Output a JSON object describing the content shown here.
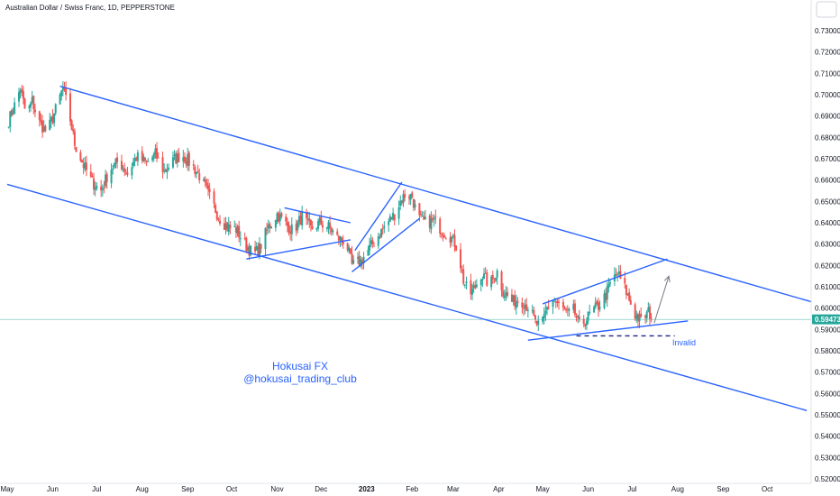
{
  "header": {
    "title": "Australian Dollar / Swiss Franc, 1D, PEPPERSTONE"
  },
  "colors": {
    "up": "#26a69a",
    "down": "#ef5350",
    "trendline": "#2962ff",
    "last_price_bg": "#26a69a",
    "axis_text": "#131722"
  },
  "icons": {
    "settings": "maximize-square-icon"
  },
  "watermark": {
    "line1": "Hokusai FX",
    "line2": "@hokusai_trading_club"
  },
  "annotations": {
    "invalid_label": "Invalid"
  },
  "last_price": {
    "label": "0.59473",
    "value": 0.59473
  },
  "chart_data": {
    "type": "candlestick",
    "title": "Australian Dollar / Swiss Franc, 1D, PEPPERSTONE",
    "ylim": [
      0.518,
      0.737
    ],
    "y_ticks": [
      0.73,
      0.72,
      0.71,
      0.7,
      0.69,
      0.68,
      0.67,
      0.66,
      0.65,
      0.64,
      0.63,
      0.62,
      0.61,
      0.6,
      0.59,
      0.58,
      0.57,
      0.56,
      0.55,
      0.54,
      0.53,
      0.52
    ],
    "y_tick_labels": [
      "0.73000",
      "0.72000",
      "0.71000",
      "0.70000",
      "0.69000",
      "0.68000",
      "0.67000",
      "0.66000",
      "0.65000",
      "0.64000",
      "0.63000",
      "0.62000",
      "0.61000",
      "0.60000",
      "0.59000",
      "0.58000",
      "0.57000",
      "0.56000",
      "0.55000",
      "0.54000",
      "0.53000",
      "0.52000"
    ],
    "x_range": [
      "2022-05-01",
      "2023-10-31"
    ],
    "x_ticks": [
      {
        "label": "May",
        "date": "2022-05-01",
        "bold": false
      },
      {
        "label": "Jun",
        "date": "2022-06-01",
        "bold": false
      },
      {
        "label": "Jul",
        "date": "2022-07-01",
        "bold": false
      },
      {
        "label": "Aug",
        "date": "2022-08-01",
        "bold": false
      },
      {
        "label": "Sep",
        "date": "2022-09-01",
        "bold": false
      },
      {
        "label": "Oct",
        "date": "2022-10-01",
        "bold": false
      },
      {
        "label": "Nov",
        "date": "2022-11-01",
        "bold": false
      },
      {
        "label": "Dec",
        "date": "2022-12-01",
        "bold": false
      },
      {
        "label": "2023",
        "date": "2023-01-01",
        "bold": true
      },
      {
        "label": "Feb",
        "date": "2023-02-01",
        "bold": false
      },
      {
        "label": "Mar",
        "date": "2023-03-01",
        "bold": false
      },
      {
        "label": "Apr",
        "date": "2023-04-01",
        "bold": false
      },
      {
        "label": "May",
        "date": "2023-05-01",
        "bold": false
      },
      {
        "label": "Jun",
        "date": "2023-06-01",
        "bold": false
      },
      {
        "label": "Jul",
        "date": "2023-07-01",
        "bold": false
      },
      {
        "label": "Aug",
        "date": "2023-08-01",
        "bold": false
      },
      {
        "label": "Sep",
        "date": "2023-09-01",
        "bold": false
      },
      {
        "label": "Oct",
        "date": "2023-10-01",
        "bold": false
      }
    ],
    "close_series": [
      [
        "2022-05-02",
        0.688
      ],
      [
        "2022-05-06",
        0.695
      ],
      [
        "2022-05-10",
        0.703
      ],
      [
        "2022-05-14",
        0.69
      ],
      [
        "2022-05-18",
        0.697
      ],
      [
        "2022-05-22",
        0.688
      ],
      [
        "2022-05-28",
        0.682
      ],
      [
        "2022-06-03",
        0.693
      ],
      [
        "2022-06-08",
        0.703
      ],
      [
        "2022-06-12",
        0.692
      ],
      [
        "2022-06-16",
        0.677
      ],
      [
        "2022-06-22",
        0.667
      ],
      [
        "2022-06-28",
        0.659
      ],
      [
        "2022-07-04",
        0.655
      ],
      [
        "2022-07-10",
        0.665
      ],
      [
        "2022-07-16",
        0.669
      ],
      [
        "2022-07-22",
        0.663
      ],
      [
        "2022-07-28",
        0.671
      ],
      [
        "2022-08-04",
        0.668
      ],
      [
        "2022-08-10",
        0.672
      ],
      [
        "2022-08-16",
        0.664
      ],
      [
        "2022-08-22",
        0.669
      ],
      [
        "2022-08-28",
        0.672
      ],
      [
        "2022-09-04",
        0.667
      ],
      [
        "2022-09-10",
        0.661
      ],
      [
        "2022-09-16",
        0.652
      ],
      [
        "2022-09-22",
        0.643
      ],
      [
        "2022-09-28",
        0.638
      ],
      [
        "2022-10-04",
        0.637
      ],
      [
        "2022-10-10",
        0.63
      ],
      [
        "2022-10-16",
        0.625
      ],
      [
        "2022-10-20",
        0.628
      ],
      [
        "2022-10-26",
        0.638
      ],
      [
        "2022-11-01",
        0.644
      ],
      [
        "2022-11-06",
        0.64
      ],
      [
        "2022-11-12",
        0.636
      ],
      [
        "2022-11-18",
        0.643
      ],
      [
        "2022-11-24",
        0.637
      ],
      [
        "2022-11-30",
        0.64
      ],
      [
        "2022-12-06",
        0.638
      ],
      [
        "2022-12-12",
        0.633
      ],
      [
        "2022-12-18",
        0.631
      ],
      [
        "2022-12-22",
        0.62
      ],
      [
        "2022-12-28",
        0.622
      ],
      [
        "2023-01-03",
        0.628
      ],
      [
        "2023-01-08",
        0.633
      ],
      [
        "2023-01-14",
        0.639
      ],
      [
        "2023-01-20",
        0.644
      ],
      [
        "2023-01-24",
        0.65
      ],
      [
        "2023-01-28",
        0.654
      ],
      [
        "2023-02-01",
        0.652
      ],
      [
        "2023-02-05",
        0.642
      ],
      [
        "2023-02-10",
        0.64
      ],
      [
        "2023-02-16",
        0.641
      ],
      [
        "2023-02-22",
        0.636
      ],
      [
        "2023-02-28",
        0.633
      ],
      [
        "2023-03-04",
        0.628
      ],
      [
        "2023-03-08",
        0.613
      ],
      [
        "2023-03-12",
        0.606
      ],
      [
        "2023-03-16",
        0.61
      ],
      [
        "2023-03-20",
        0.616
      ],
      [
        "2023-03-26",
        0.611
      ],
      [
        "2023-03-31",
        0.617
      ],
      [
        "2023-04-04",
        0.608
      ],
      [
        "2023-04-10",
        0.603
      ],
      [
        "2023-04-16",
        0.604
      ],
      [
        "2023-04-22",
        0.6
      ],
      [
        "2023-04-26",
        0.593
      ],
      [
        "2023-04-30",
        0.591
      ],
      [
        "2023-05-04",
        0.6
      ],
      [
        "2023-05-08",
        0.604
      ],
      [
        "2023-05-14",
        0.6
      ],
      [
        "2023-05-18",
        0.597
      ],
      [
        "2023-05-22",
        0.599
      ],
      [
        "2023-05-26",
        0.592
      ],
      [
        "2023-05-30",
        0.594
      ],
      [
        "2023-06-03",
        0.598
      ],
      [
        "2023-06-08",
        0.601
      ],
      [
        "2023-06-13",
        0.606
      ],
      [
        "2023-06-17",
        0.613
      ],
      [
        "2023-06-21",
        0.616
      ],
      [
        "2023-06-25",
        0.611
      ],
      [
        "2023-06-29",
        0.604
      ],
      [
        "2023-07-03",
        0.597
      ],
      [
        "2023-07-07",
        0.594
      ],
      [
        "2023-07-12",
        0.598
      ],
      [
        "2023-07-16",
        0.595
      ]
    ],
    "drawings": [
      {
        "name": "channel-upper",
        "from": [
          "2022-06-06",
          0.704
        ],
        "to": [
          "2023-10-31",
          0.603
        ],
        "style": "solid"
      },
      {
        "name": "channel-lower",
        "from": [
          "2022-05-01",
          0.658
        ],
        "to": [
          "2023-10-28",
          0.552
        ],
        "style": "solid"
      },
      {
        "name": "triangle-top",
        "from": [
          "2022-11-06",
          0.647
        ],
        "to": [
          "2022-12-21",
          0.64
        ],
        "style": "solid"
      },
      {
        "name": "triangle-bottom",
        "from": [
          "2022-10-11",
          0.623
        ],
        "to": [
          "2022-12-21",
          0.632
        ],
        "style": "solid"
      },
      {
        "name": "wedge-upper",
        "from": [
          "2022-12-24",
          0.627
        ],
        "to": [
          "2023-01-25",
          0.659
        ],
        "style": "solid"
      },
      {
        "name": "wedge-lower",
        "from": [
          "2022-12-22",
          0.617
        ],
        "to": [
          "2023-02-06",
          0.642
        ],
        "style": "solid"
      },
      {
        "name": "triangle2-upper",
        "from": [
          "2023-05-01",
          0.602
        ],
        "to": [
          "2023-07-25",
          0.623
        ],
        "style": "solid"
      },
      {
        "name": "triangle2-lower",
        "from": [
          "2023-04-21",
          0.585
        ],
        "to": [
          "2023-08-08",
          0.594
        ],
        "style": "solid"
      },
      {
        "name": "invalid-level",
        "from": [
          "2023-05-24",
          0.587
        ],
        "to": [
          "2023-07-30",
          0.587
        ],
        "style": "dashed"
      },
      {
        "name": "projection-arrow",
        "from": [
          "2023-07-16",
          0.593
        ],
        "to": [
          "2023-07-26",
          0.615
        ],
        "style": "arrow"
      }
    ]
  }
}
